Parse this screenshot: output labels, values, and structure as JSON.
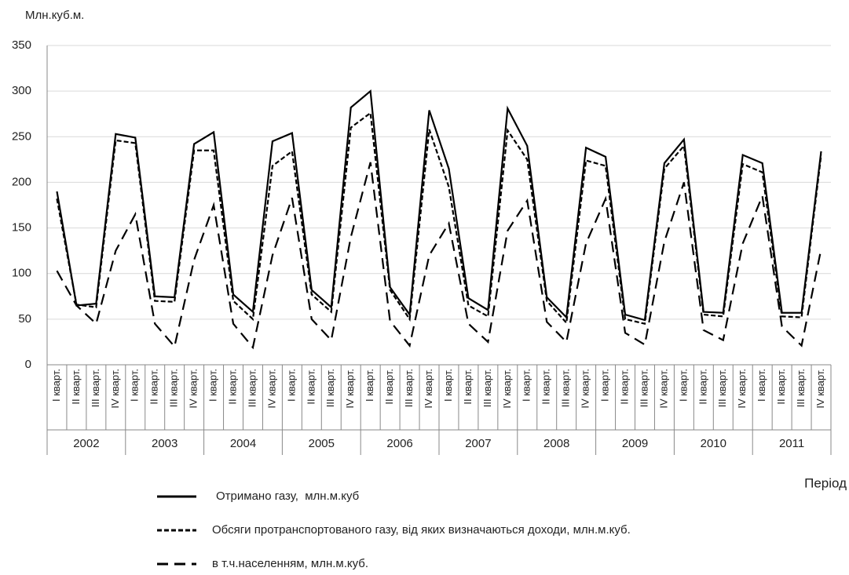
{
  "chart_data": {
    "type": "line",
    "y_axis_label": "Млн.куб.м.",
    "x_axis_label": "Період",
    "categories": [
      "I кварт.",
      "II кварт.",
      "III кварт.",
      "IV кварт.",
      "I кварт.",
      "II кварт.",
      "III кварт.",
      "IV кварт.",
      "I кварт.",
      "II кварт.",
      "III кварт.",
      "IV кварт.",
      "I кварт.",
      "II кварт.",
      "III кварт.",
      "IV кварт.",
      "I кварт.",
      "II кварт.",
      "III кварт.",
      "IV кварт.",
      "I кварт.",
      "II кварт.",
      "III кварт.",
      "IV кварт.",
      "I кварт.",
      "II кварт.",
      "III кварт.",
      "IV кварт.",
      "I кварт.",
      "II кварт.",
      "III кварт.",
      "IV кварт.",
      "I кварт.",
      "II кварт.",
      "III кварт.",
      "IV кварт.",
      "I кварт.",
      "II кварт.",
      "III кварт.",
      "IV кварт."
    ],
    "years": [
      "2002",
      "2003",
      "2004",
      "2005",
      "2006",
      "2007",
      "2008",
      "2009",
      "2010",
      "2011"
    ],
    "series": [
      {
        "name": "Отримано газу,  млн.м.куб",
        "color": "#000000",
        "dash": "solid",
        "values": [
          190,
          65,
          67,
          253,
          249,
          75,
          74,
          242,
          255,
          77,
          58,
          245,
          254,
          82,
          63,
          282,
          300,
          85,
          55,
          279,
          215,
          73,
          60,
          281,
          240,
          74,
          52,
          238,
          228,
          55,
          49,
          221,
          247,
          58,
          57,
          230,
          221,
          57,
          57,
          234
        ]
      },
      {
        "name": "Обсяги протранспортованого газу, від яких визначаються доходи, млн.м.куб.",
        "color": "#000000",
        "dash": "short",
        "values": [
          182,
          66,
          63,
          246,
          243,
          70,
          69,
          235,
          235,
          70,
          50,
          218,
          234,
          77,
          58,
          260,
          276,
          82,
          50,
          258,
          195,
          65,
          53,
          257,
          225,
          70,
          46,
          224,
          218,
          50,
          45,
          215,
          240,
          55,
          53,
          220,
          211,
          53,
          52,
          230
        ]
      },
      {
        "name": "в т.ч.населенням, млн.м.куб.",
        "color": "#000000",
        "dash": "long",
        "values": [
          103,
          65,
          45,
          125,
          165,
          45,
          20,
          115,
          175,
          45,
          19,
          120,
          183,
          50,
          27,
          140,
          222,
          48,
          21,
          120,
          155,
          45,
          25,
          147,
          180,
          47,
          25,
          133,
          182,
          35,
          22,
          135,
          200,
          38,
          27,
          133,
          185,
          42,
          21,
          127
        ]
      }
    ],
    "ylim": [
      0,
      350
    ],
    "yticks": [
      0,
      50,
      100,
      150,
      200,
      250,
      300,
      350
    ],
    "grid": true
  }
}
